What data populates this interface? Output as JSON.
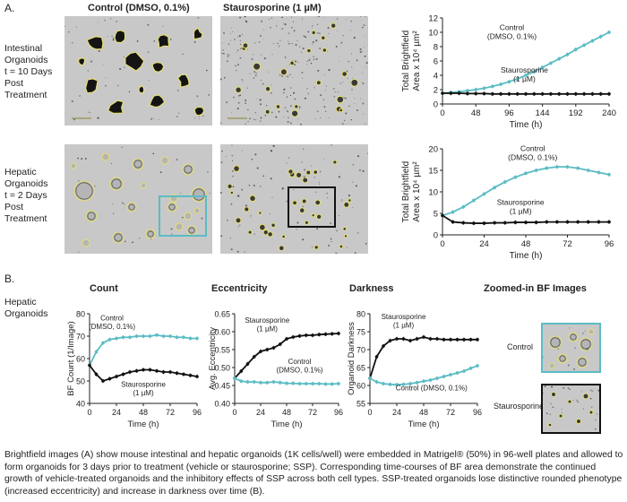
{
  "panel_a": {
    "label": "A.",
    "col_control": "Control (DMSO, 0.1%)",
    "col_ssp": "Staurosporine (1 µM)",
    "row1_label": [
      "Intestinal",
      "Organoids",
      "t = 10 Days",
      "Post",
      "Treatment"
    ],
    "row2_label": [
      "Hepatic",
      "Organoids",
      "t = 2 Days",
      "Post",
      "Treatment"
    ]
  },
  "panel_b": {
    "label": "B.",
    "row_label": [
      "Hepatic",
      "Organoids"
    ],
    "titles": [
      "Count",
      "Eccentricity",
      "Darkness",
      "Zoomed-in BF Images"
    ],
    "zoom_control": "Control",
    "zoom_ssp": "Staurosporine"
  },
  "colors": {
    "control": "#5bbcc4",
    "ssp": "#111111",
    "micro_bg": "#c8c8c8",
    "outline": "#e8e070"
  },
  "chart_data": [
    {
      "id": "intestinal-area",
      "type": "line",
      "ylabel": [
        "Total Brightfield",
        "Area x 10⁴ µm²"
      ],
      "xlabel": "Time (h)",
      "xlim": [
        0,
        240
      ],
      "ylim": [
        0,
        12
      ],
      "xticks": [
        0,
        48,
        96,
        144,
        192,
        240
      ],
      "yticks": [
        0,
        2,
        4,
        6,
        8,
        10,
        12
      ],
      "annotations": [
        {
          "lines": [
            "Control",
            "(DMSO, 0.1%)"
          ],
          "x": 100,
          "y": 10.3
        },
        {
          "lines": [
            "Staurosporine",
            "(1 µM)"
          ],
          "x": 118,
          "y": 4.4
        }
      ],
      "series": [
        {
          "name": "Control (DMSO, 0.1%)",
          "color": "#5bbcc4",
          "x": [
            0,
            12,
            24,
            36,
            48,
            60,
            72,
            84,
            96,
            108,
            120,
            132,
            144,
            156,
            168,
            180,
            192,
            204,
            216,
            228,
            240
          ],
          "y": [
            1.5,
            1.6,
            1.7,
            1.85,
            2.0,
            2.2,
            2.45,
            2.75,
            3.1,
            3.5,
            4.0,
            4.5,
            5.1,
            5.7,
            6.3,
            6.9,
            7.6,
            8.2,
            8.8,
            9.4,
            10.0
          ]
        },
        {
          "name": "Staurosporine (1 µM)",
          "color": "#111111",
          "x": [
            0,
            12,
            24,
            36,
            48,
            60,
            72,
            84,
            96,
            108,
            120,
            132,
            144,
            156,
            168,
            180,
            192,
            204,
            216,
            228,
            240
          ],
          "y": [
            1.5,
            1.5,
            1.5,
            1.45,
            1.45,
            1.45,
            1.4,
            1.4,
            1.4,
            1.4,
            1.4,
            1.4,
            1.4,
            1.4,
            1.4,
            1.4,
            1.4,
            1.4,
            1.4,
            1.4,
            1.4
          ]
        }
      ]
    },
    {
      "id": "hepatic-area",
      "type": "line",
      "ylabel": [
        "Total Brightfield",
        "Area x 10⁴ µm²"
      ],
      "xlabel": "Time (h)",
      "xlim": [
        0,
        96
      ],
      "ylim": [
        0,
        20
      ],
      "xticks": [
        0,
        24,
        48,
        72,
        96
      ],
      "yticks": [
        0,
        5,
        10,
        15,
        20
      ],
      "annotations": [
        {
          "lines": [
            "Control",
            "(DMSO, 0.1%)"
          ],
          "x": 52,
          "y": 19.5
        },
        {
          "lines": [
            "Staurosporine",
            "(1 µM)"
          ],
          "x": 45,
          "y": 7.0
        }
      ],
      "series": [
        {
          "name": "Control (DMSO, 0.1%)",
          "color": "#5bbcc4",
          "x": [
            0,
            6,
            12,
            18,
            24,
            30,
            36,
            42,
            48,
            54,
            60,
            66,
            72,
            78,
            84,
            90,
            96
          ],
          "y": [
            4.5,
            5.3,
            6.5,
            8.0,
            9.5,
            11.0,
            12.3,
            13.4,
            14.3,
            15.0,
            15.5,
            15.8,
            15.8,
            15.5,
            15.0,
            14.5,
            14.0
          ]
        },
        {
          "name": "Staurosporine (1 µM)",
          "color": "#111111",
          "x": [
            0,
            6,
            12,
            18,
            24,
            30,
            36,
            42,
            48,
            54,
            60,
            66,
            72,
            78,
            84,
            90,
            96
          ],
          "y": [
            4.5,
            3.0,
            2.8,
            2.7,
            2.7,
            2.8,
            2.8,
            2.9,
            2.9,
            2.9,
            3.0,
            3.0,
            3.0,
            3.0,
            3.0,
            3.0,
            3.0
          ]
        }
      ]
    },
    {
      "id": "count",
      "type": "line",
      "ylabel": [
        "BF Count (1/Image)"
      ],
      "xlabel": "Time (h)",
      "xlim": [
        0,
        96
      ],
      "ylim": [
        40,
        80
      ],
      "xticks": [
        0,
        24,
        48,
        72,
        96
      ],
      "yticks": [
        40,
        50,
        60,
        70,
        80
      ],
      "annotations": [
        {
          "lines": [
            "Control",
            "(DMSO, 0.1%)"
          ],
          "x": 20,
          "y": 77
        },
        {
          "lines": [
            "Staurosporine",
            "(1 µM)"
          ],
          "x": 48,
          "y": 47.5
        }
      ],
      "series": [
        {
          "name": "Control (DMSO, 0.1%)",
          "color": "#5bbcc4",
          "x": [
            0,
            6,
            12,
            18,
            24,
            30,
            36,
            42,
            48,
            54,
            60,
            66,
            72,
            78,
            84,
            90,
            96
          ],
          "y": [
            57,
            63,
            67,
            68.5,
            69,
            69.5,
            69.5,
            70,
            70,
            70,
            70.5,
            70,
            70,
            69.5,
            69.5,
            69,
            69
          ]
        },
        {
          "name": "Staurosporine (1 µM)",
          "color": "#111111",
          "x": [
            0,
            6,
            12,
            18,
            24,
            30,
            36,
            42,
            48,
            54,
            60,
            66,
            72,
            78,
            84,
            90,
            96
          ],
          "y": [
            57,
            53,
            50,
            51,
            52,
            53,
            54,
            54.5,
            55,
            55,
            54.5,
            54,
            54,
            53.5,
            53,
            52.5,
            52
          ]
        }
      ]
    },
    {
      "id": "eccentricity",
      "type": "line",
      "ylabel": [
        "Avg. Eccentricity"
      ],
      "xlabel": "Time (h)",
      "xlim": [
        0,
        96
      ],
      "ylim": [
        0.4,
        0.65
      ],
      "xticks": [
        0,
        24,
        48,
        72,
        96
      ],
      "yticks": [
        0.4,
        0.45,
        0.5,
        0.55,
        0.6,
        0.65
      ],
      "annotations": [
        {
          "lines": [
            "Staurosporine",
            "(1 µM)"
          ],
          "x": 30,
          "y": 0.625
        },
        {
          "lines": [
            "Control",
            "(DMSO, 0.1%)"
          ],
          "x": 60,
          "y": 0.51
        }
      ],
      "series": [
        {
          "name": "Staurosporine (1 µM)",
          "color": "#111111",
          "x": [
            0,
            6,
            12,
            18,
            24,
            30,
            36,
            42,
            48,
            54,
            60,
            66,
            72,
            78,
            84,
            90,
            96
          ],
          "y": [
            0.47,
            0.49,
            0.51,
            0.53,
            0.545,
            0.55,
            0.555,
            0.565,
            0.58,
            0.585,
            0.588,
            0.59,
            0.59,
            0.592,
            0.593,
            0.594,
            0.595
          ]
        },
        {
          "name": "Control (DMSO, 0.1%)",
          "color": "#5bbcc4",
          "x": [
            0,
            6,
            12,
            18,
            24,
            30,
            36,
            42,
            48,
            54,
            60,
            66,
            72,
            78,
            84,
            90,
            96
          ],
          "y": [
            0.47,
            0.462,
            0.46,
            0.46,
            0.458,
            0.458,
            0.46,
            0.458,
            0.456,
            0.456,
            0.455,
            0.455,
            0.455,
            0.455,
            0.454,
            0.454,
            0.455
          ]
        }
      ]
    },
    {
      "id": "darkness",
      "type": "line",
      "ylabel": [
        "Organoid Darkness"
      ],
      "xlabel": "Time (h)",
      "xlim": [
        0,
        96
      ],
      "ylim": [
        55,
        80
      ],
      "xticks": [
        0,
        24,
        48,
        72,
        96
      ],
      "yticks": [
        55,
        60,
        65,
        70,
        75,
        80
      ],
      "annotations": [
        {
          "lines": [
            "Staurosporine",
            "(1 µM)"
          ],
          "x": 30,
          "y": 78.5
        },
        {
          "lines": [
            "Control (DMSO, 0.1%)"
          ],
          "x": 55,
          "y": 58.6
        }
      ],
      "series": [
        {
          "name": "Staurosporine (1 µM)",
          "color": "#111111",
          "x": [
            0,
            6,
            12,
            18,
            24,
            30,
            36,
            42,
            48,
            54,
            60,
            66,
            72,
            78,
            84,
            90,
            96
          ],
          "y": [
            62,
            68,
            71,
            72.5,
            73,
            73,
            72.5,
            73,
            73.5,
            73,
            73,
            72.8,
            72.8,
            72.8,
            72.8,
            72.8,
            72.8
          ]
        },
        {
          "name": "Control (DMSO, 0.1%)",
          "color": "#5bbcc4",
          "x": [
            0,
            6,
            12,
            18,
            24,
            30,
            36,
            42,
            48,
            54,
            60,
            66,
            72,
            78,
            84,
            90,
            96
          ],
          "y": [
            62,
            61,
            60.5,
            60.3,
            60.2,
            60.3,
            60.5,
            60.8,
            61.2,
            61.5,
            62,
            62.5,
            63,
            63.5,
            64,
            64.8,
            65.5
          ]
        }
      ]
    }
  ],
  "caption": "Brightfield images (A) show mouse intestinal and hepatic organoids (1K cells/well) were embedded in Matrigel® (50%) in 96-well plates and allowed to form organoids for 3 days prior to treatment (vehicle or staurosporine; SSP). Corresponding time-courses of BF area demonstrate the continued growth of vehicle-treated organoids and the inhibitory effects of SSP across both cell types. SSP-treated organoids lose distinctive rounded phenotype (increased eccentricity) and increase in darkness over time (B)."
}
